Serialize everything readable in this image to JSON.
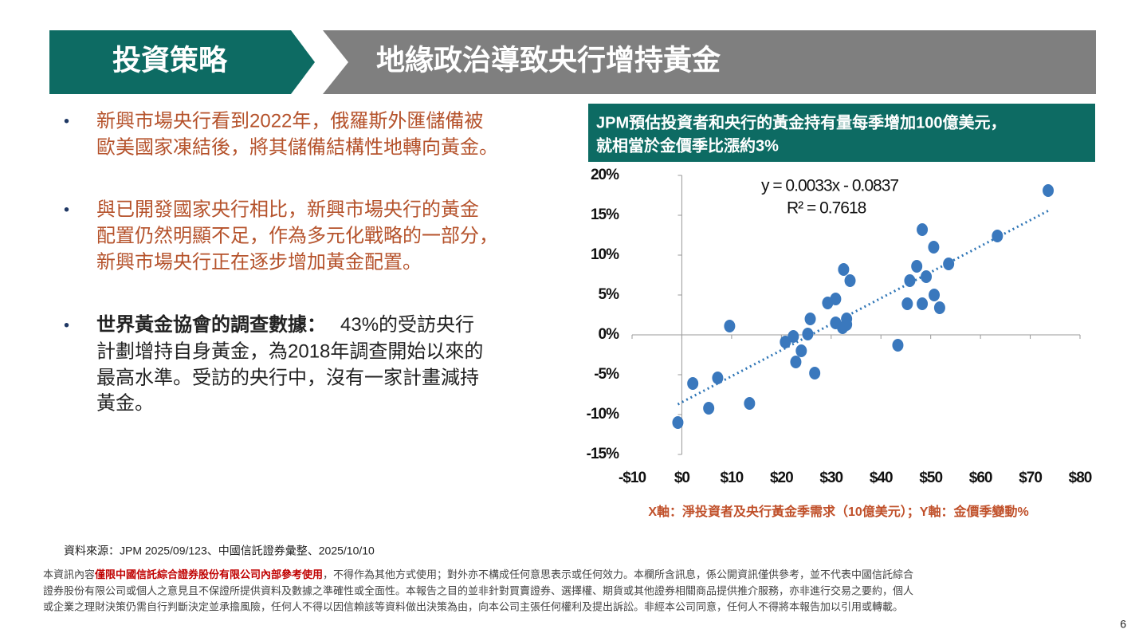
{
  "header": {
    "section": "投資策略",
    "title": "地緣政治導致央行增持黃金"
  },
  "bullets": [
    {
      "lines": [
        "新興市場央行看到2022年，俄羅斯外匯儲備被",
        "歐美國家凍結後，將其儲備結構性地轉向黃金。"
      ]
    },
    {
      "lines": [
        "與已開發國家央行相比，新興市場央行的黃金",
        "配置仍然明顯不足，作為多元化戰略的一部分，",
        "新興市場央行正在逐步增加黃金配置。"
      ]
    },
    {
      "bold": "世界黃金協會的調查數據：",
      "lines": [
        "43%的受訪央行",
        "計劃增持自身黃金，為2018年調查開始以來的",
        "最高水準。受訪的央行中，沒有一家計畫減持",
        "黃金。"
      ]
    }
  ],
  "chart_data": {
    "type": "scatter",
    "title": [
      "JPM預估投資者和央行的黃金持有量每季增加100億美元，",
      "就相當於金價季比漲約3%"
    ],
    "equation": "y = 0.0033x - 0.0837",
    "r_squared": "R² = 0.7618",
    "axis_caption": "X軸：淨投資者及央行黃金季需求（10億美元）；Y軸：金價季變動%",
    "color": "#3a78bd",
    "trendline_color": "#2e75b6",
    "x": [
      -0.8,
      2.2,
      5.4,
      7.2,
      9.6,
      13.6,
      20.8,
      22.4,
      22.9,
      24.0,
      25.3,
      25.8,
      26.7,
      29.3,
      30.9,
      30.9,
      32.5,
      32.3,
      33.1,
      33.1,
      33.8,
      43.4,
      45.3,
      45.8,
      47.2,
      48.3,
      48.3,
      49.1,
      50.6,
      50.7,
      51.8,
      53.6,
      63.4,
      73.6
    ],
    "values": [
      -11,
      -6.1,
      -9.2,
      -5.4,
      1.1,
      -8.6,
      -0.9,
      -0.2,
      -3.4,
      -2.0,
      0.1,
      2.0,
      -4.8,
      4.0,
      4.5,
      1.5,
      8.2,
      0.9,
      2.0,
      1.3,
      6.8,
      -1.3,
      3.9,
      6.8,
      8.6,
      13.2,
      3.9,
      7.3,
      11.0,
      5.0,
      3.4,
      8.9,
      12.4,
      18.1
    ],
    "xlim": [
      -10,
      80
    ],
    "xticks": [
      {
        "value": -10,
        "label": "-$10"
      },
      {
        "value": 0,
        "label": "$0"
      },
      {
        "value": 10,
        "label": "$10"
      },
      {
        "value": 20,
        "label": "$20"
      },
      {
        "value": 30,
        "label": "$30"
      },
      {
        "value": 40,
        "label": "$40"
      },
      {
        "value": 50,
        "label": "$50"
      },
      {
        "value": 60,
        "label": "$60"
      },
      {
        "value": 70,
        "label": "$70"
      },
      {
        "value": 80,
        "label": "$80"
      }
    ],
    "ylim": [
      -15,
      20
    ],
    "yticks": [
      {
        "value": -15,
        "label": "-15%"
      },
      {
        "value": -10,
        "label": "-10%"
      },
      {
        "value": -5,
        "label": "-5%"
      },
      {
        "value": 0,
        "label": "0%"
      },
      {
        "value": 5,
        "label": "5%"
      },
      {
        "value": 10,
        "label": "10%"
      },
      {
        "value": 15,
        "label": "15%"
      },
      {
        "value": 20,
        "label": "20%"
      }
    ]
  },
  "source": "資料來源：JPM 2025/09/123、中國信託證券彙整、2025/10/10",
  "disclaimer": {
    "prefix": "本資訊內容",
    "highlight": "僅限中國信託綜合證券股份有限公司內部參考使用",
    "lines": [
      "，不得作為其他方式使用；對外亦不構成任何意思表示或任何效力。本欄所含訊息，係公開資訊僅供參考，並不代表中國信託綜合",
      "證券股份有限公司或個人之意見且不保證所提供資料及數據之準確性或全面性。本報告之目的並非針對買賣證券、選擇權、期貨或其他證券相關商品提供推介服務，亦非進行交易之要約，個人",
      "或企業之理財決策仍需自行判斷決定並承擔風險，任何人不得以因信賴該等資料做出決策為由，向本公司主張任何權利及提出訴訟。非經本公司同意，任何人不得將本報告加以引用或轉載。"
    ]
  },
  "page_number": "6"
}
